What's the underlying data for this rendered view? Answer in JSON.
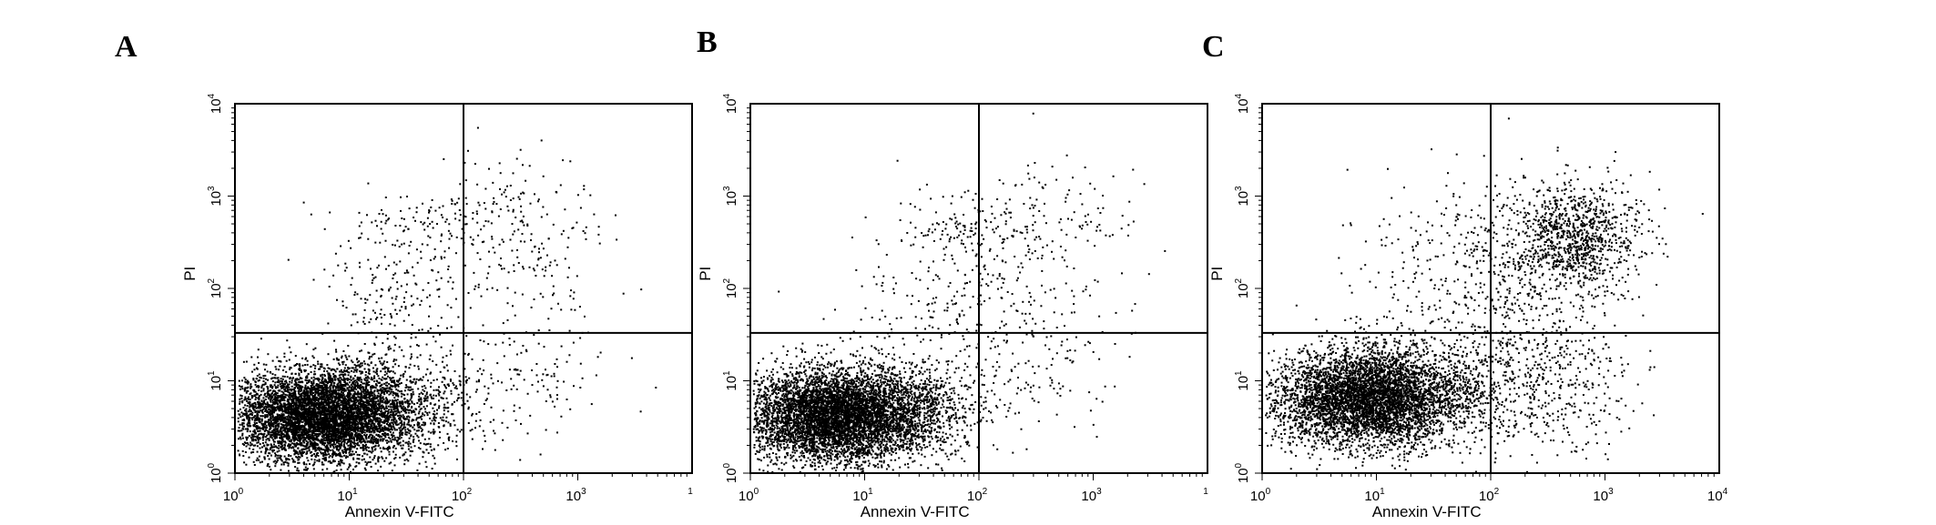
{
  "chart_data": [
    {
      "type": "scatter",
      "panel_label": "A",
      "xlabel": "Annexin V-FITC",
      "ylabel": "PI",
      "xscale": "log",
      "yscale": "log",
      "xlim": [
        1,
        10000
      ],
      "ylim": [
        1,
        10000
      ],
      "x_ticks": [
        {
          "base": "10",
          "exp": "0"
        },
        {
          "base": "10",
          "exp": "1"
        },
        {
          "base": "10",
          "exp": "2"
        },
        {
          "base": "10",
          "exp": "3"
        },
        {
          "base": "",
          "exp": "1"
        }
      ],
      "y_ticks": [
        {
          "base": "10",
          "exp": "0"
        },
        {
          "base": "10",
          "exp": "1"
        },
        {
          "base": "10",
          "exp": "2"
        },
        {
          "base": "10",
          "exp": "3"
        },
        {
          "base": "10",
          "exp": "4"
        }
      ],
      "quadrant_x": 100,
      "quadrant_y": 33,
      "populations": [
        {
          "n": 5200,
          "cx": 5.5,
          "cy": 4.2,
          "sx": 0.4,
          "sy": 0.24
        },
        {
          "n": 1500,
          "cx": 12,
          "cy": 5,
          "sx": 0.45,
          "sy": 0.28
        },
        {
          "n": 180,
          "cx": 25,
          "cy": 80,
          "sx": 0.3,
          "sy": 0.35
        },
        {
          "n": 220,
          "cx": 300,
          "cy": 350,
          "sx": 0.4,
          "sy": 0.45
        },
        {
          "n": 160,
          "cx": 250,
          "cy": 12,
          "sx": 0.45,
          "sy": 0.35
        },
        {
          "n": 120,
          "cx": 40,
          "cy": 500,
          "sx": 0.35,
          "sy": 0.18
        }
      ],
      "grid": false
    },
    {
      "type": "scatter",
      "panel_label": "B",
      "xlabel": "Annexin V-FITC",
      "ylabel": "PI",
      "xscale": "log",
      "yscale": "log",
      "xlim": [
        1,
        10000
      ],
      "ylim": [
        1,
        10000
      ],
      "x_ticks": [
        {
          "base": "10",
          "exp": "0"
        },
        {
          "base": "10",
          "exp": "1"
        },
        {
          "base": "10",
          "exp": "2"
        },
        {
          "base": "10",
          "exp": "3"
        },
        {
          "base": "",
          "exp": "1"
        }
      ],
      "y_ticks": [
        {
          "base": "10",
          "exp": "0"
        },
        {
          "base": "10",
          "exp": "1"
        },
        {
          "base": "10",
          "exp": "2"
        },
        {
          "base": "10",
          "exp": "3"
        },
        {
          "base": "10",
          "exp": "4"
        }
      ],
      "quadrant_x": 100,
      "quadrant_y": 33,
      "populations": [
        {
          "n": 5200,
          "cx": 5.0,
          "cy": 4.2,
          "sx": 0.4,
          "sy": 0.24
        },
        {
          "n": 1500,
          "cx": 14,
          "cy": 5,
          "sx": 0.45,
          "sy": 0.28
        },
        {
          "n": 150,
          "cx": 40,
          "cy": 90,
          "sx": 0.4,
          "sy": 0.35
        },
        {
          "n": 200,
          "cx": 350,
          "cy": 380,
          "sx": 0.4,
          "sy": 0.4
        },
        {
          "n": 150,
          "cx": 300,
          "cy": 15,
          "sx": 0.4,
          "sy": 0.35
        },
        {
          "n": 100,
          "cx": 60,
          "cy": 450,
          "sx": 0.35,
          "sy": 0.15
        }
      ],
      "grid": false
    },
    {
      "type": "scatter",
      "panel_label": "C",
      "xlabel": "Annexin V-FITC",
      "ylabel": "PI",
      "xscale": "log",
      "yscale": "log",
      "xlim": [
        1,
        10000
      ],
      "ylim": [
        1,
        10000
      ],
      "x_ticks": [
        {
          "base": "10",
          "exp": "0"
        },
        {
          "base": "10",
          "exp": "1"
        },
        {
          "base": "10",
          "exp": "2"
        },
        {
          "base": "10",
          "exp": "3"
        },
        {
          "base": "10",
          "exp": "4"
        }
      ],
      "y_ticks": [
        {
          "base": "10",
          "exp": "0"
        },
        {
          "base": "10",
          "exp": "1"
        },
        {
          "base": "10",
          "exp": "2"
        },
        {
          "base": "10",
          "exp": "3"
        },
        {
          "base": "10",
          "exp": "4"
        }
      ],
      "quadrant_x": 100,
      "quadrant_y": 33,
      "populations": [
        {
          "n": 4200,
          "cx": 7.5,
          "cy": 6.5,
          "sx": 0.4,
          "sy": 0.26
        },
        {
          "n": 1300,
          "cx": 18,
          "cy": 8,
          "sx": 0.45,
          "sy": 0.3
        },
        {
          "n": 900,
          "cx": 550,
          "cy": 400,
          "sx": 0.28,
          "sy": 0.28
        },
        {
          "n": 450,
          "cx": 220,
          "cy": 150,
          "sx": 0.45,
          "sy": 0.5
        },
        {
          "n": 450,
          "cx": 300,
          "cy": 10,
          "sx": 0.4,
          "sy": 0.4
        },
        {
          "n": 200,
          "cx": 50,
          "cy": 200,
          "sx": 0.5,
          "sy": 0.45
        }
      ],
      "grid": false
    }
  ]
}
